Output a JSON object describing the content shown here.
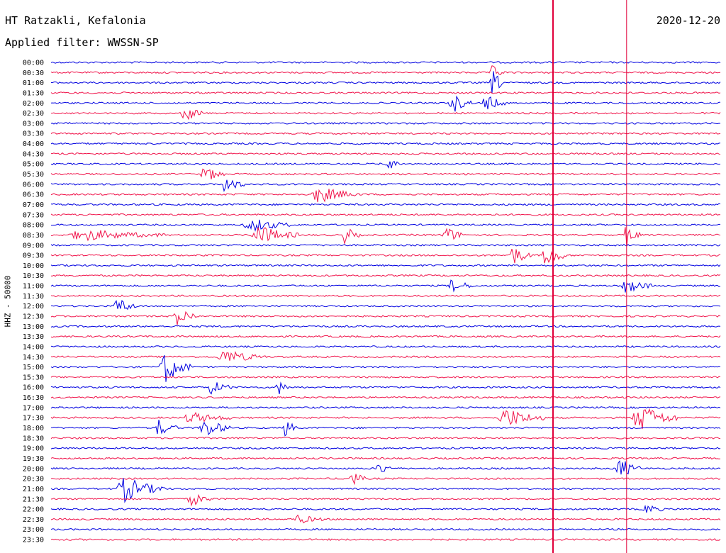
{
  "header": {
    "station": "HT Ratzakli, Kefalonia",
    "filter": "Applied filter: WWSSN-SP",
    "date": "2020-12-20"
  },
  "channel_label": "HHZ - 50000",
  "colors": {
    "line_a": "#0000e0",
    "line_b": "#f0144b",
    "marker": "#e0003a"
  },
  "chart_data": {
    "type": "line",
    "title": "",
    "rows": [
      "00:00",
      "00:30",
      "01:00",
      "01:30",
      "02:00",
      "02:30",
      "03:00",
      "03:30",
      "04:00",
      "04:30",
      "05:00",
      "05:30",
      "06:00",
      "06:30",
      "07:00",
      "07:30",
      "08:00",
      "08:30",
      "09:00",
      "09:30",
      "10:00",
      "10:30",
      "11:00",
      "11:30",
      "12:00",
      "12:30",
      "13:00",
      "13:30",
      "14:00",
      "14:30",
      "15:00",
      "15:30",
      "16:00",
      "16:30",
      "17:00",
      "17:30",
      "18:00",
      "18:30",
      "19:00",
      "19:30",
      "20:00",
      "20:30",
      "21:00",
      "21:30",
      "22:00",
      "22:30",
      "23:00",
      "23:30"
    ],
    "row_colors": [
      "blue",
      "red"
    ],
    "events": [
      {
        "row": 1,
        "x_frac": 0.66,
        "amp": 10,
        "w": 0.01
      },
      {
        "row": 2,
        "x_frac": 0.66,
        "amp": 18,
        "w": 0.01
      },
      {
        "row": 4,
        "x_frac": 0.6,
        "amp": 14,
        "w": 0.015
      },
      {
        "row": 4,
        "x_frac": 0.65,
        "amp": 12,
        "w": 0.015
      },
      {
        "row": 5,
        "x_frac": 0.2,
        "amp": 12,
        "w": 0.015
      },
      {
        "row": 10,
        "x_frac": 0.5,
        "amp": 10,
        "w": 0.012
      },
      {
        "row": 11,
        "x_frac": 0.23,
        "amp": 12,
        "w": 0.015
      },
      {
        "row": 12,
        "x_frac": 0.26,
        "amp": 12,
        "w": 0.015
      },
      {
        "row": 13,
        "x_frac": 0.4,
        "amp": 12,
        "w": 0.03
      },
      {
        "row": 16,
        "x_frac": 0.3,
        "amp": 10,
        "w": 0.03
      },
      {
        "row": 17,
        "x_frac": 0.05,
        "amp": 8,
        "w": 0.06
      },
      {
        "row": 17,
        "x_frac": 0.31,
        "amp": 14,
        "w": 0.03
      },
      {
        "row": 17,
        "x_frac": 0.44,
        "amp": 14,
        "w": 0.01
      },
      {
        "row": 17,
        "x_frac": 0.59,
        "amp": 12,
        "w": 0.015
      },
      {
        "row": 17,
        "x_frac": 0.86,
        "amp": 16,
        "w": 0.01
      },
      {
        "row": 19,
        "x_frac": 0.69,
        "amp": 14,
        "w": 0.015
      },
      {
        "row": 19,
        "x_frac": 0.74,
        "amp": 18,
        "w": 0.015
      },
      {
        "row": 22,
        "x_frac": 0.6,
        "amp": 10,
        "w": 0.015
      },
      {
        "row": 22,
        "x_frac": 0.86,
        "amp": 10,
        "w": 0.02
      },
      {
        "row": 24,
        "x_frac": 0.1,
        "amp": 12,
        "w": 0.015
      },
      {
        "row": 25,
        "x_frac": 0.19,
        "amp": 14,
        "w": 0.015
      },
      {
        "row": 29,
        "x_frac": 0.26,
        "amp": 10,
        "w": 0.03
      },
      {
        "row": 30,
        "x_frac": 0.17,
        "amp": 24,
        "w": 0.02
      },
      {
        "row": 32,
        "x_frac": 0.24,
        "amp": 10,
        "w": 0.015
      },
      {
        "row": 32,
        "x_frac": 0.34,
        "amp": 10,
        "w": 0.01
      },
      {
        "row": 35,
        "x_frac": 0.21,
        "amp": 8,
        "w": 0.03
      },
      {
        "row": 35,
        "x_frac": 0.68,
        "amp": 14,
        "w": 0.03
      },
      {
        "row": 35,
        "x_frac": 0.88,
        "amp": 20,
        "w": 0.03
      },
      {
        "row": 36,
        "x_frac": 0.16,
        "amp": 12,
        "w": 0.015
      },
      {
        "row": 36,
        "x_frac": 0.23,
        "amp": 14,
        "w": 0.02
      },
      {
        "row": 36,
        "x_frac": 0.35,
        "amp": 12,
        "w": 0.01
      },
      {
        "row": 40,
        "x_frac": 0.49,
        "amp": 10,
        "w": 0.01
      },
      {
        "row": 40,
        "x_frac": 0.85,
        "amp": 16,
        "w": 0.015
      },
      {
        "row": 41,
        "x_frac": 0.45,
        "amp": 12,
        "w": 0.01
      },
      {
        "row": 42,
        "x_frac": 0.11,
        "amp": 18,
        "w": 0.03
      },
      {
        "row": 43,
        "x_frac": 0.21,
        "amp": 10,
        "w": 0.015
      },
      {
        "row": 45,
        "x_frac": 0.37,
        "amp": 6,
        "w": 0.02
      },
      {
        "row": 44,
        "x_frac": 0.89,
        "amp": 8,
        "w": 0.012
      }
    ],
    "markers_x_frac": [
      0.75,
      0.86
    ]
  }
}
